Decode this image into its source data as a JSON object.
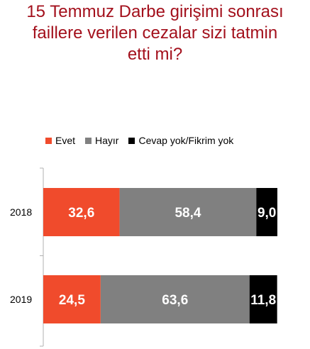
{
  "chart_data": {
    "type": "bar",
    "orientation": "horizontal",
    "stacked": true,
    "title_lines": [
      "15 Temmuz Darbe girişimi sonrası",
      "faillere verilen cezalar sizi tatmin",
      "etti mi?"
    ],
    "categories": [
      "2018",
      "2019"
    ],
    "series": [
      {
        "name": "Evet",
        "values": [
          32.6,
          24.5
        ],
        "labels": [
          "32,6",
          "24,5"
        ],
        "color": "#f04b2c"
      },
      {
        "name": "Hayır",
        "values": [
          58.4,
          63.6
        ],
        "labels": [
          "58,4",
          "63,6"
        ],
        "color": "#808080"
      },
      {
        "name": "Cevap yok/Fikrim yok",
        "values": [
          9.0,
          11.8
        ],
        "labels": [
          "9,0",
          "11,8"
        ],
        "color": "#000000"
      }
    ],
    "xlim": [
      0,
      100
    ],
    "grid": false,
    "legend_position": "top"
  }
}
